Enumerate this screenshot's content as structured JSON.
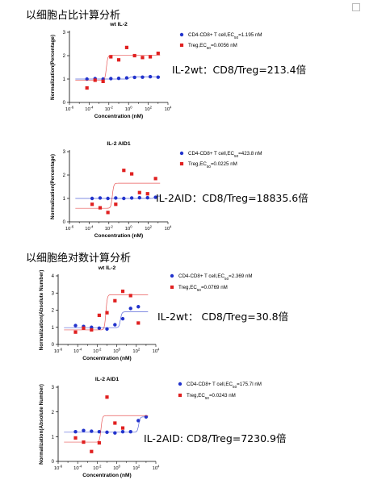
{
  "headings": {
    "proportion": "以细胞占比计算分析",
    "absolute": "以细胞绝对数计算分析"
  },
  "chart_data": [
    {
      "type": "scatter",
      "title": "wt IL-2",
      "xlabel": "Concentration (nM)",
      "ylabel": "Normalization(Percentage)",
      "xscale": "log",
      "xlim": [
        1e-06,
        10000
      ],
      "ylim": [
        0,
        3
      ],
      "xtick_exponents": [
        -6,
        -4,
        -2,
        0,
        2,
        4
      ],
      "yticks": [
        0,
        1,
        2,
        3
      ],
      "legend": [
        "CD4-CD8+ T cell,EC50=1.195 nM",
        "Treg,EC50=0.0056 nM"
      ],
      "ratio_text": "IL-2wt：CD8/Treg=213.4倍",
      "series": [
        {
          "name": "CD4-CD8+ T cell",
          "color": "#2233cc",
          "marker": "circle",
          "x": [
            6e-05,
            0.0004,
            0.0026,
            0.016,
            0.1,
            0.65,
            4.1,
            26,
            160,
            1000
          ],
          "y": [
            1.0,
            1.02,
            1.0,
            1.02,
            1.03,
            1.05,
            1.07,
            1.08,
            1.1,
            1.08
          ],
          "curve": {
            "bottom": 1.0,
            "top": 1.1,
            "ec50": 1.195
          }
        },
        {
          "name": "Treg",
          "color": "#e02020",
          "marker": "square",
          "x": [
            6e-05,
            0.0004,
            0.0026,
            0.016,
            0.1,
            0.65,
            4.1,
            26,
            160,
            1000
          ],
          "y": [
            0.62,
            0.95,
            0.9,
            1.95,
            1.82,
            2.35,
            2.0,
            1.92,
            1.95,
            2.1
          ],
          "curve": {
            "bottom": 0.95,
            "top": 2.02,
            "ec50": 0.0056
          }
        }
      ]
    },
    {
      "type": "scatter",
      "title": "IL-2 AID1",
      "xlabel": "Concentration (nM)",
      "ylabel": "Normalization(Percentage)",
      "xscale": "log",
      "xlim": [
        1e-06,
        10000
      ],
      "ylim": [
        0,
        3
      ],
      "xtick_exponents": [
        -6,
        -4,
        -2,
        0,
        2,
        4
      ],
      "yticks": [
        0,
        1,
        2,
        3
      ],
      "legend": [
        "CD4-CD8+ T cell,EC50=423.8 nM",
        "Treg,EC50=0.0225 nM"
      ],
      "ratio_text": "IL-2AID：CD8/Treg=18835.6倍",
      "series": [
        {
          "name": "CD4-CD8+ T cell",
          "color": "#2233cc",
          "marker": "circle",
          "x": [
            0.0002,
            0.0013,
            0.008,
            0.05,
            0.33,
            2.1,
            13,
            85,
            550
          ],
          "y": [
            1.0,
            1.02,
            1.0,
            1.02,
            1.0,
            1.02,
            1.03,
            1.03,
            1.05
          ],
          "curve": {
            "bottom": 1.0,
            "top": 1.1,
            "ec50": 423.8
          }
        },
        {
          "name": "Treg",
          "color": "#e02020",
          "marker": "square",
          "x": [
            0.0002,
            0.0013,
            0.008,
            0.05,
            0.33,
            2.1,
            13,
            85,
            550
          ],
          "y": [
            0.75,
            0.6,
            0.4,
            0.75,
            2.2,
            2.05,
            1.25,
            1.2,
            1.85
          ],
          "curve": {
            "bottom": 0.58,
            "top": 1.65,
            "ec50": 0.0225
          }
        }
      ]
    },
    {
      "type": "scatter",
      "title": "wt IL-2",
      "xlabel": "Concentration (nM)",
      "ylabel": "Normalization(Absolute Number)",
      "xscale": "log",
      "xlim": [
        1e-06,
        10000
      ],
      "ylim": [
        0,
        4
      ],
      "xtick_exponents": [
        -6,
        -4,
        -2,
        0,
        2,
        4
      ],
      "yticks": [
        0,
        1,
        2,
        3,
        4
      ],
      "legend": [
        "CD4-CD8+ T cell,EC50=2.369 nM",
        "Treg,EC50=0.0769 nM"
      ],
      "ratio_text": "IL-2wt： CD8/Treg=30.8倍",
      "series": [
        {
          "name": "CD4-CD8+ T cell",
          "color": "#2233cc",
          "marker": "circle",
          "x": [
            6e-05,
            0.0004,
            0.0026,
            0.016,
            0.1,
            0.65,
            4.1,
            26,
            160
          ],
          "y": [
            1.1,
            1.05,
            1.0,
            0.95,
            0.9,
            1.15,
            1.5,
            2.1,
            2.2
          ],
          "curve": {
            "bottom": 0.98,
            "top": 1.9,
            "ec50": 2.369
          }
        },
        {
          "name": "Treg",
          "color": "#e02020",
          "marker": "square",
          "x": [
            6e-05,
            0.0004,
            0.0026,
            0.016,
            0.1,
            0.65,
            4.1,
            26,
            160
          ],
          "y": [
            0.72,
            0.95,
            0.85,
            1.7,
            1.85,
            2.55,
            3.1,
            2.85,
            1.25
          ],
          "curve": {
            "bottom": 0.85,
            "top": 2.9,
            "ec50": 0.0769
          }
        }
      ]
    },
    {
      "type": "scatter",
      "title": "IL-2 AID1",
      "xlabel": "Concentration (nM)",
      "ylabel": "Normalization(Absolute Number)",
      "xscale": "log",
      "xlim": [
        1e-06,
        10000
      ],
      "ylim": [
        0,
        3
      ],
      "xtick_exponents": [
        -6,
        -4,
        -2,
        0,
        2,
        4
      ],
      "yticks": [
        0,
        1,
        2,
        3
      ],
      "legend": [
        "CD4-CD8+ T cell,EC50=175.7l nM",
        "Treg,EC50=0.0243 nM"
      ],
      "ratio_text": "IL-2AID:  CD8/Treg=7230.9倍",
      "series": [
        {
          "name": "CD4-CD8+ T cell",
          "color": "#2233cc",
          "marker": "circle",
          "x": [
            6e-05,
            0.0004,
            0.0026,
            0.016,
            0.1,
            0.65,
            4.1,
            26,
            160,
            1000
          ],
          "y": [
            1.2,
            1.25,
            1.22,
            1.2,
            1.18,
            1.15,
            1.2,
            1.2,
            1.65,
            1.8
          ],
          "curve": {
            "bottom": 1.18,
            "top": 1.8,
            "ec50": 175.7
          }
        },
        {
          "name": "Treg",
          "color": "#e02020",
          "marker": "square",
          "x": [
            6e-05,
            0.0004,
            0.0026,
            0.016,
            0.1,
            0.65,
            4.1
          ],
          "y": [
            0.95,
            0.78,
            0.4,
            0.75,
            2.6,
            1.55,
            1.35
          ],
          "curve": {
            "bottom": 0.78,
            "top": 1.85,
            "ec50": 0.0243
          }
        }
      ]
    }
  ]
}
